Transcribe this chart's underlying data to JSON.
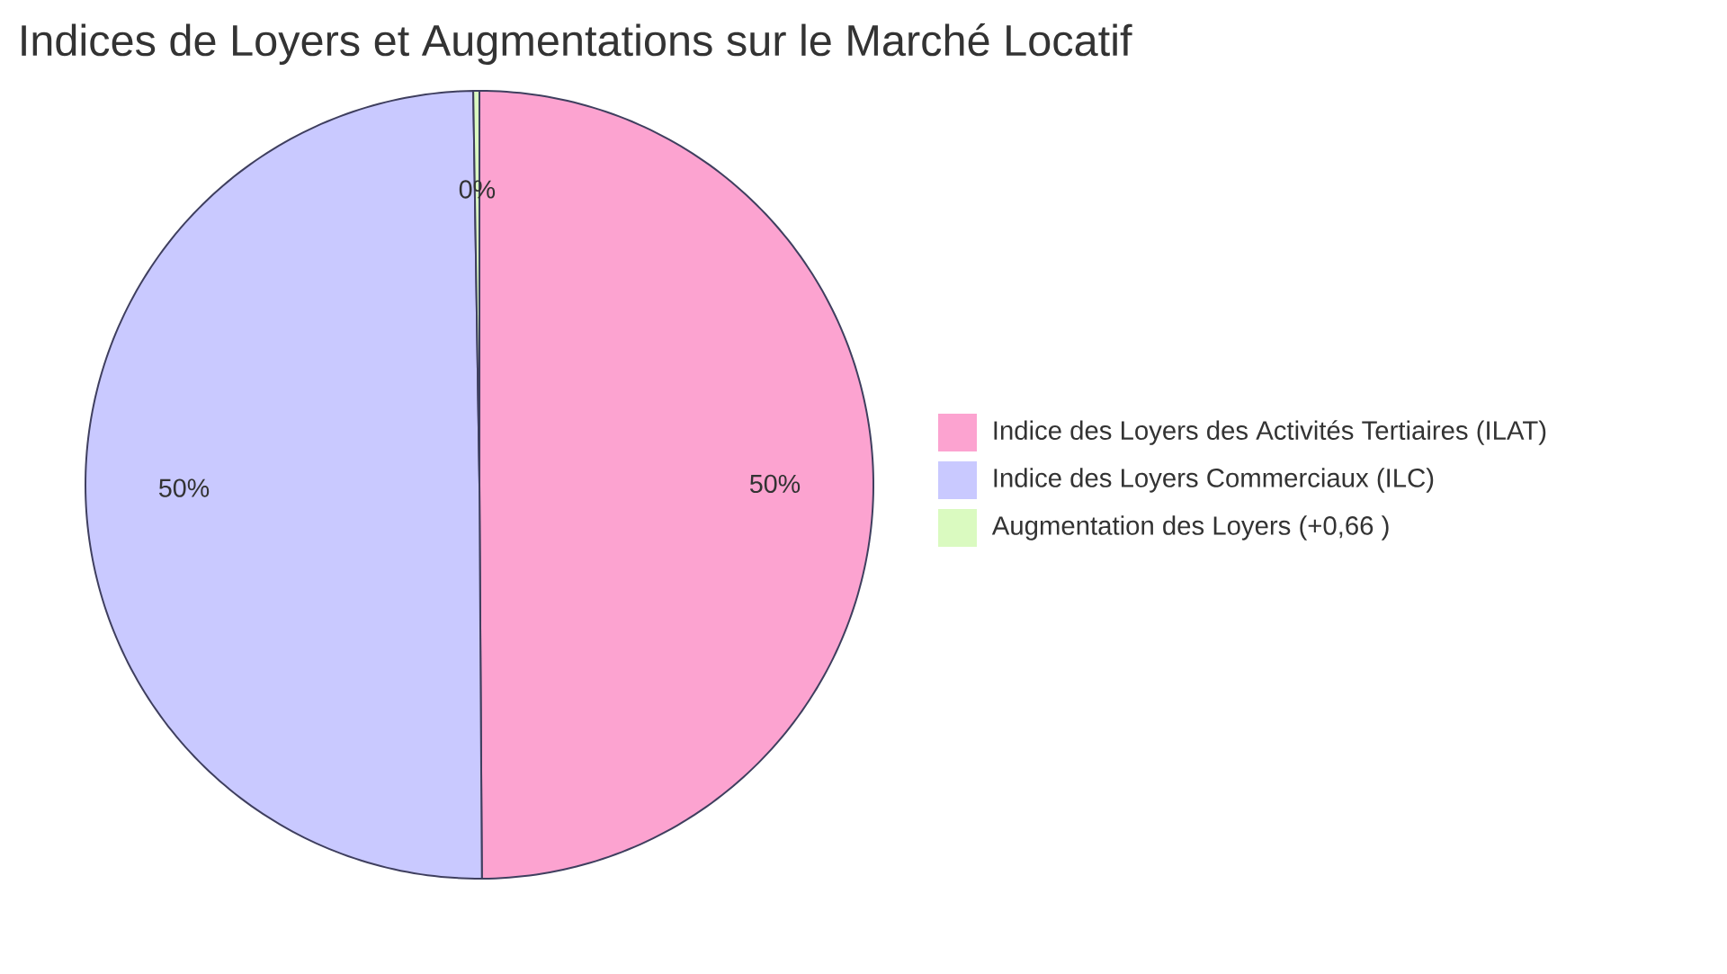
{
  "chart_data": {
    "type": "pie",
    "title": "Indices de Loyers et Augmentations sur le Marché Locatif",
    "categories": [
      "Indice des Loyers des Activités Tertiaires (ILAT)",
      "Indice des Loyers Commerciaux (ILC)",
      "Augmentation des Loyers (+0,66 )"
    ],
    "values": [
      49.9,
      49.85,
      0.25
    ],
    "colors": [
      "#fca3d0",
      "#c9c9ff",
      "#dafac0"
    ],
    "value_labels": [
      "50%",
      "50%",
      "0%"
    ],
    "legend": "right"
  }
}
